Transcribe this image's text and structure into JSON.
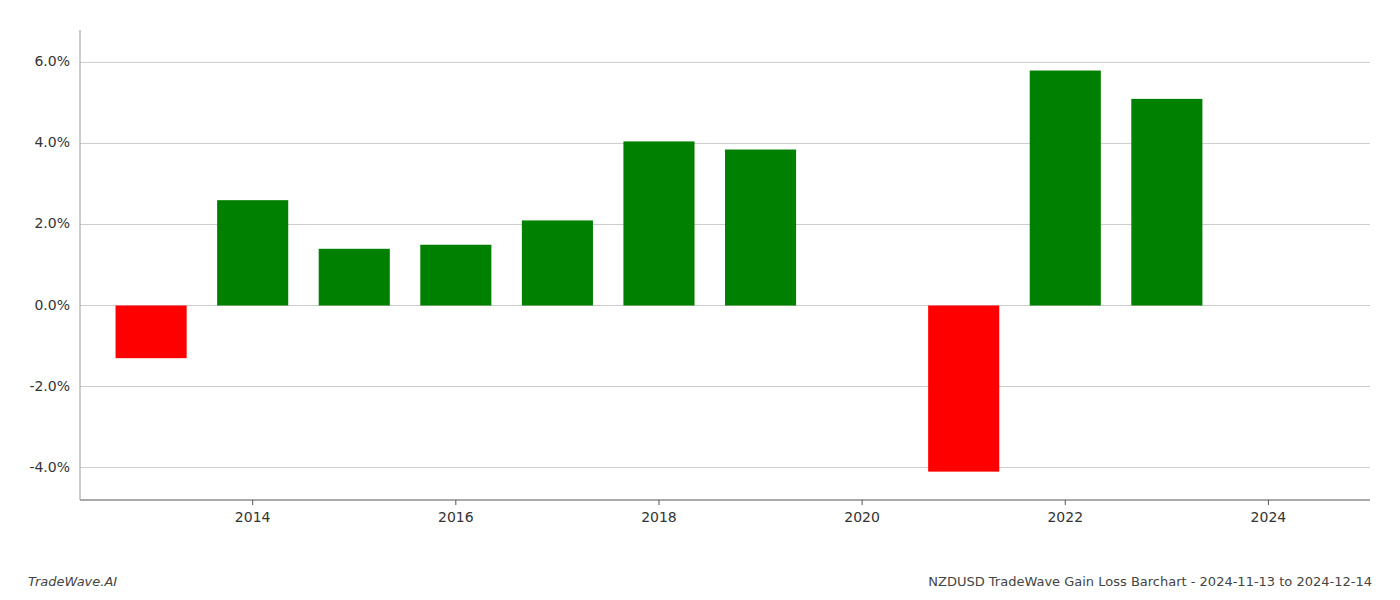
{
  "chart_data": {
    "type": "bar",
    "x": [
      2013,
      2014,
      2015,
      2016,
      2017,
      2018,
      2019,
      2021,
      2022,
      2023
    ],
    "values": [
      -1.3,
      2.6,
      1.4,
      1.5,
      2.1,
      4.05,
      3.85,
      -4.1,
      5.8,
      5.1
    ],
    "colors": [
      "#ff0000",
      "#008000",
      "#008000",
      "#008000",
      "#008000",
      "#008000",
      "#008000",
      "#ff0000",
      "#008000",
      "#008000"
    ],
    "xlim": [
      2012.3,
      2025.0
    ],
    "xticks": [
      2014,
      2016,
      2018,
      2020,
      2022,
      2024
    ],
    "ylim": [
      -4.8,
      6.8
    ],
    "yticks": [
      {
        "value": -4.0,
        "label": "-4.0%"
      },
      {
        "value": -2.0,
        "label": "-2.0%"
      },
      {
        "value": 0.0,
        "label": "0.0%"
      },
      {
        "value": 2.0,
        "label": "2.0%"
      },
      {
        "value": 4.0,
        "label": "4.0%"
      },
      {
        "value": 6.0,
        "label": "6.0%"
      }
    ],
    "grid": true,
    "annotations": [
      "TradeWave.AI",
      "NZDUSD TradeWave Gain Loss Barchart - 2024-11-13 to 2024-12-14"
    ]
  }
}
